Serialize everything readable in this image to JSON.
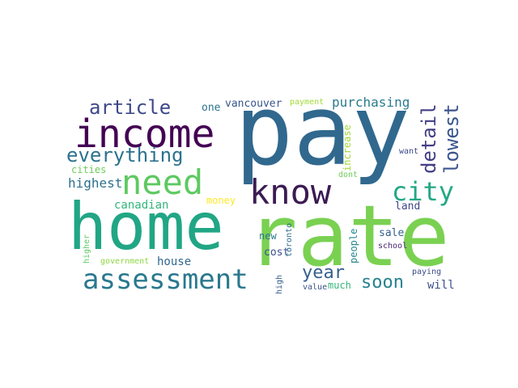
{
  "words": [
    {
      "text": "pay",
      "color": "#31688e"
    },
    {
      "text": "rate",
      "color": "#7ad151"
    },
    {
      "text": "home",
      "color": "#21a685"
    },
    {
      "text": "income",
      "color": "#440154"
    },
    {
      "text": "need",
      "color": "#5ec962"
    },
    {
      "text": "know",
      "color": "#3b1b53"
    },
    {
      "text": "assessment",
      "color": "#2a788e"
    },
    {
      "text": "everything",
      "color": "#2c728e"
    },
    {
      "text": "city",
      "color": "#22a884"
    },
    {
      "text": "article",
      "color": "#3e4989"
    },
    {
      "text": "detail",
      "color": "#433e85"
    },
    {
      "text": "lowest",
      "color": "#3a548c"
    },
    {
      "text": "year",
      "color": "#355f8d"
    },
    {
      "text": "soon",
      "color": "#26828e"
    },
    {
      "text": "highest",
      "color": "#2d708e"
    },
    {
      "text": "purchasing",
      "color": "#2a7b8e"
    },
    {
      "text": "canadian",
      "color": "#31b57b"
    },
    {
      "text": "vancouver",
      "color": "#39568c"
    },
    {
      "text": "one",
      "color": "#2c738e"
    },
    {
      "text": "increase",
      "color": "#a0da39"
    },
    {
      "text": "cities",
      "color": "#6ccd5a"
    },
    {
      "text": "land",
      "color": "#3f4788"
    },
    {
      "text": "money",
      "color": "#fde725"
    },
    {
      "text": "house",
      "color": "#31678e"
    },
    {
      "text": "cost",
      "color": "#3c4f8a"
    },
    {
      "text": "new",
      "color": "#2a768e"
    },
    {
      "text": "people",
      "color": "#24878e"
    },
    {
      "text": "sale",
      "color": "#34618d"
    },
    {
      "text": "school",
      "color": "#482475"
    },
    {
      "text": "will",
      "color": "#3b528b"
    },
    {
      "text": "much",
      "color": "#35b779"
    },
    {
      "text": "paying",
      "color": "#3e4a89"
    },
    {
      "text": "payment",
      "color": "#a2da37"
    },
    {
      "text": "government",
      "color": "#90d743"
    },
    {
      "text": "higher",
      "color": "#5ec962"
    },
    {
      "text": "toronto",
      "color": "#2e6d8e"
    },
    {
      "text": "high",
      "color": "#355e8d"
    },
    {
      "text": "value",
      "color": "#3b528b"
    },
    {
      "text": "dont",
      "color": "#6ece58"
    },
    {
      "text": "want",
      "color": "#3e4989"
    }
  ]
}
